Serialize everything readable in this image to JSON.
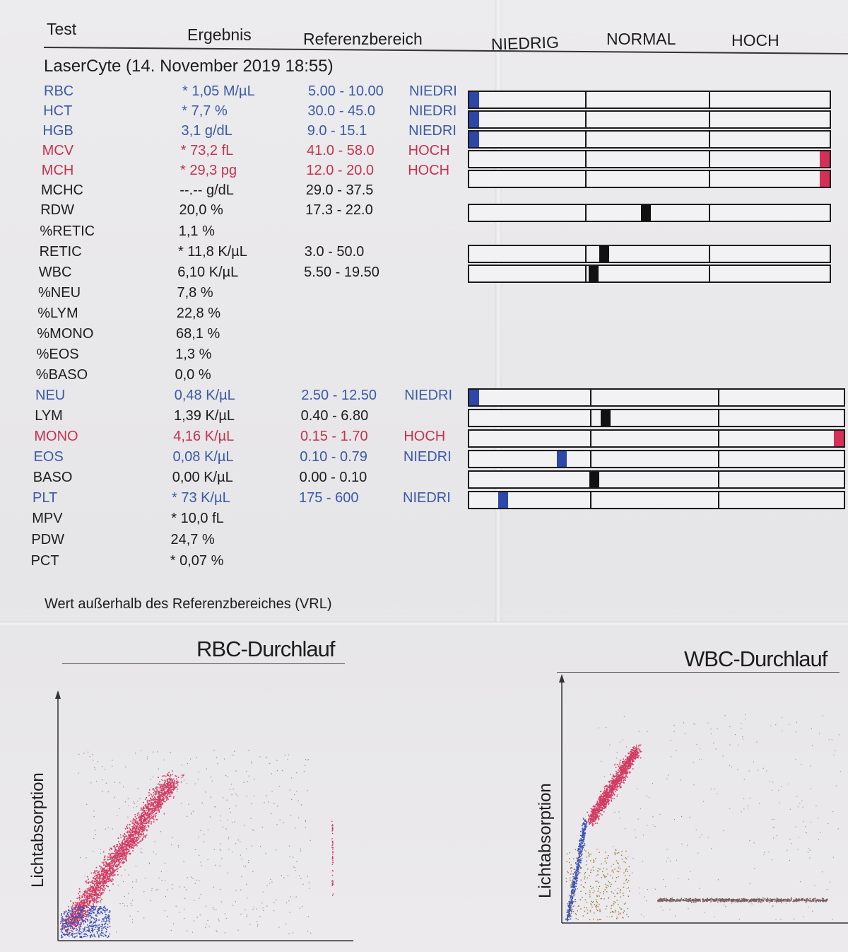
{
  "header": {
    "test": "Test",
    "ergebnis": "Ergebnis",
    "referenzbereich": "Referenzbereich",
    "niedrig": "NIEDRIG",
    "normal": "NORMAL",
    "hoch": "HOCH"
  },
  "report_title": "LaserCyte (14. November 2019 18:55)",
  "rows": [
    {
      "test": "RBC",
      "result": "* 1,05 M/µL",
      "ref": "5.00 - 10.00",
      "flag": "NIEDRI",
      "color": "blue",
      "level": 0.0
    },
    {
      "test": "HCT",
      "result": "* 7,7 %",
      "ref": "30.0 - 45.0",
      "flag": "NIEDRI",
      "color": "blue",
      "level": 0.0
    },
    {
      "test": "HGB",
      "result": "3,1 g/dL",
      "ref": "9.0 - 15.1",
      "flag": "NIEDRI",
      "color": "blue",
      "level": 0.0
    },
    {
      "test": "MCV",
      "result": "* 73,2 fL",
      "ref": "41.0 - 58.0",
      "flag": "HOCH",
      "color": "red",
      "level": 1.0
    },
    {
      "test": "MCH",
      "result": "* 29,3 pg",
      "ref": "12.0 - 20.0",
      "flag": "HOCH",
      "color": "red",
      "level": 1.0
    },
    {
      "test": "MCHC",
      "result": "--.-- g/dL",
      "ref": "29.0 - 37.5",
      "flag": "",
      "color": "black",
      "level": null
    },
    {
      "test": "RDW",
      "result": "20,0 %",
      "ref": "17.3 - 22.0",
      "flag": "",
      "color": "black",
      "level": 0.49
    },
    {
      "test": "%RETIC",
      "result": "1,1 %",
      "ref": "",
      "flag": "",
      "color": "black",
      "level": null
    },
    {
      "test": "RETIC",
      "result": "* 11,8 K/µL",
      "ref": "3.0 - 50.0",
      "flag": "",
      "color": "black",
      "level": 0.37
    },
    {
      "test": "WBC",
      "result": "6,10 K/µL",
      "ref": "5.50 - 19.50",
      "flag": "",
      "color": "black",
      "level": 0.34
    },
    {
      "test": "%NEU",
      "result": "7,8 %",
      "ref": "",
      "flag": "",
      "color": "black",
      "level": null
    },
    {
      "test": "%LYM",
      "result": "22,8 %",
      "ref": "",
      "flag": "",
      "color": "black",
      "level": null
    },
    {
      "test": "%MONO",
      "result": "68,1 %",
      "ref": "",
      "flag": "",
      "color": "black",
      "level": null
    },
    {
      "test": "%EOS",
      "result": "1,3 %",
      "ref": "",
      "flag": "",
      "color": "black",
      "level": null
    },
    {
      "test": "%BASO",
      "result": "0,0 %",
      "ref": "",
      "flag": "",
      "color": "black",
      "level": null
    },
    {
      "test": "NEU",
      "result": "0,48 K/µL",
      "ref": "2.50 - 12.50",
      "flag": "NIEDRI",
      "color": "blue",
      "level": 0.0
    },
    {
      "test": "LYM",
      "result": "1,39 K/µL",
      "ref": "0.40 - 6.80",
      "flag": "",
      "color": "black",
      "level": 0.36
    },
    {
      "test": "MONO",
      "result": "4,16 K/µL",
      "ref": "0.15 - 1.70",
      "flag": "HOCH",
      "color": "red",
      "level": 1.0
    },
    {
      "test": "EOS",
      "result": "0,08 K/µL",
      "ref": "0.10 - 0.79",
      "flag": "NIEDRI",
      "color": "blue",
      "level": 0.24
    },
    {
      "test": "BASO",
      "result": "0,00 K/µL",
      "ref": "0.00 - 0.10",
      "flag": "",
      "color": "black",
      "level": 0.33
    },
    {
      "test": "PLT",
      "result": "* 73 K/µL",
      "ref": "175 - 600",
      "flag": "NIEDRI",
      "color": "blue",
      "level": 0.08
    },
    {
      "test": "MPV",
      "result": "* 10,0 fL",
      "ref": "",
      "flag": "",
      "color": "black",
      "level": null
    },
    {
      "test": "PDW",
      "result": "24,7 %",
      "ref": "",
      "flag": "",
      "color": "black",
      "level": null
    },
    {
      "test": "PCT",
      "result": "* 0,07 %",
      "ref": "",
      "flag": "",
      "color": "black",
      "level": null
    }
  ],
  "footnote": "Wert außerhalb des Referenzbereiches (VRL)",
  "rbc_plot": {
    "title": "RBC-Durchlauf",
    "ylabel": "Lichtabsorption"
  },
  "wbc_plot": {
    "title": "WBC-Durchlauf",
    "ylabel": "Lichtabsorption"
  },
  "colors": {
    "blue": "#3a5aa6",
    "red": "#c2334f",
    "marker_black": "#111111",
    "low_blue": "#2c47a8",
    "high_red": "#d42f55"
  }
}
